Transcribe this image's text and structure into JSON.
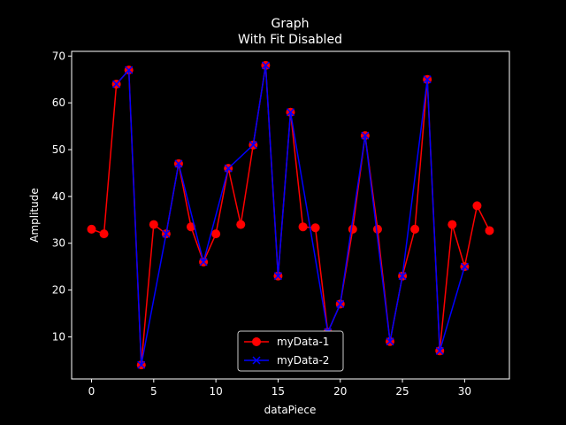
{
  "chart_data": {
    "type": "line",
    "title": "Graph",
    "subtitle": "With Fit Disabled",
    "xlabel": "dataPiece",
    "ylabel": "Amplitude",
    "xlim": [
      -1.6,
      33.6
    ],
    "ylim": [
      1.0,
      71.0
    ],
    "xticks": [
      0,
      5,
      10,
      15,
      20,
      25,
      30
    ],
    "yticks": [
      10,
      20,
      30,
      40,
      50,
      60,
      70
    ],
    "grid": false,
    "legend_position": "bottom-center",
    "series": [
      {
        "name": "myData-1",
        "color": "#ff0000",
        "marker": "circle",
        "x": [
          0,
          1,
          2,
          3,
          4,
          5,
          6,
          7,
          8,
          9,
          10,
          11,
          12,
          13,
          14,
          15,
          16,
          17,
          18,
          19,
          20,
          21,
          22,
          23,
          24,
          25,
          26,
          27,
          28,
          29,
          30,
          31,
          32
        ],
        "y": [
          33,
          32,
          64,
          67,
          4,
          34,
          32,
          47,
          33.5,
          26,
          32,
          46,
          34,
          51,
          68,
          23,
          58,
          33.5,
          33.3,
          11,
          17,
          33,
          53,
          33,
          9,
          23,
          33,
          65,
          7,
          34,
          25,
          38,
          32.7
        ]
      },
      {
        "name": "myData-2",
        "color": "#0000ff",
        "marker": "x",
        "x": [
          2,
          3,
          4,
          6,
          7,
          9,
          11,
          13,
          14,
          15,
          16,
          19,
          20,
          22,
          24,
          25,
          27,
          28,
          30
        ],
        "y": [
          64,
          67,
          4,
          32,
          47,
          26,
          46,
          51,
          68,
          23,
          58,
          11,
          17,
          53,
          9,
          23,
          65,
          7,
          25
        ]
      }
    ]
  }
}
